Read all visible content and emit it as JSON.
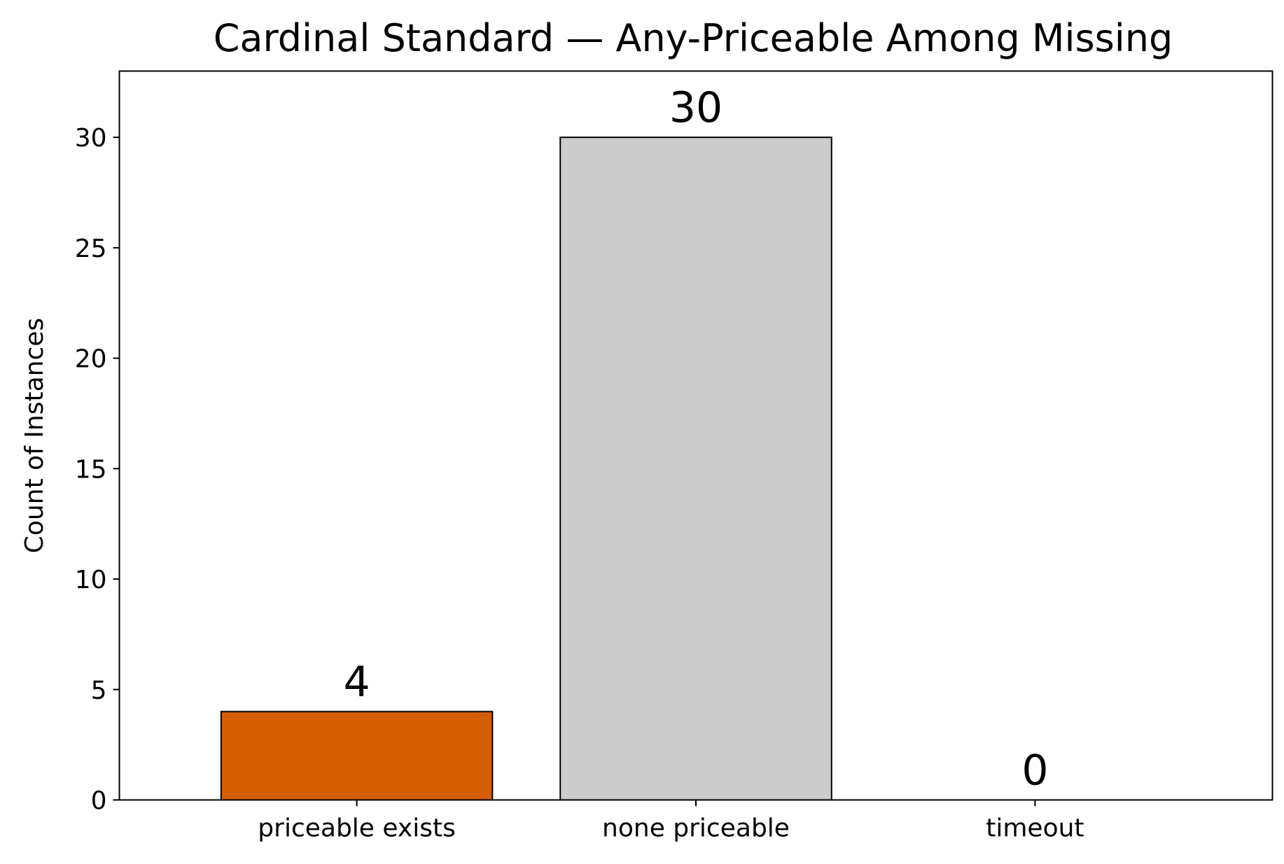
{
  "chart_data": {
    "type": "bar",
    "title": "Cardinal Standard — Any-Priceable Among Missing",
    "xlabel": "",
    "ylabel": "Count of Instances",
    "categories": [
      "priceable exists",
      "none priceable",
      "timeout"
    ],
    "values": [
      4,
      30,
      0
    ],
    "data_labels": [
      "4",
      "30",
      "0"
    ],
    "bar_colors": [
      "#d55e00",
      "#cccccc",
      "#cccccc"
    ],
    "edge_color": "#000000",
    "ylim": [
      0,
      33
    ],
    "yticks": [
      0,
      5,
      10,
      15,
      20,
      25,
      30
    ],
    "grid": false,
    "legend": false
  }
}
